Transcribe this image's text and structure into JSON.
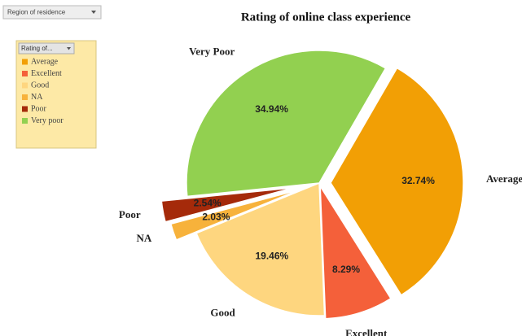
{
  "filter_button": "Region of residence",
  "chart_data": {
    "type": "pie",
    "title": "Rating of online class experience",
    "categories": [
      "Average",
      "Excellent",
      "Good",
      "NA",
      "Poor",
      "Very Poor"
    ],
    "values": [
      32.74,
      8.29,
      19.46,
      2.03,
      2.54,
      34.94
    ],
    "value_labels": [
      "32.74%",
      "8.29%",
      "19.46%",
      "2.03%",
      "2.54%",
      "34.94%"
    ],
    "colors": [
      "#f29f05",
      "#f4603a",
      "#fed67f",
      "#f7b23b",
      "#a52a0a",
      "#92d050"
    ],
    "legend_title": "Rating of...",
    "legend_labels": [
      "Average",
      "Excellent",
      "Good",
      "NA",
      "Poor",
      "Very poor"
    ],
    "legend_position": "left"
  }
}
